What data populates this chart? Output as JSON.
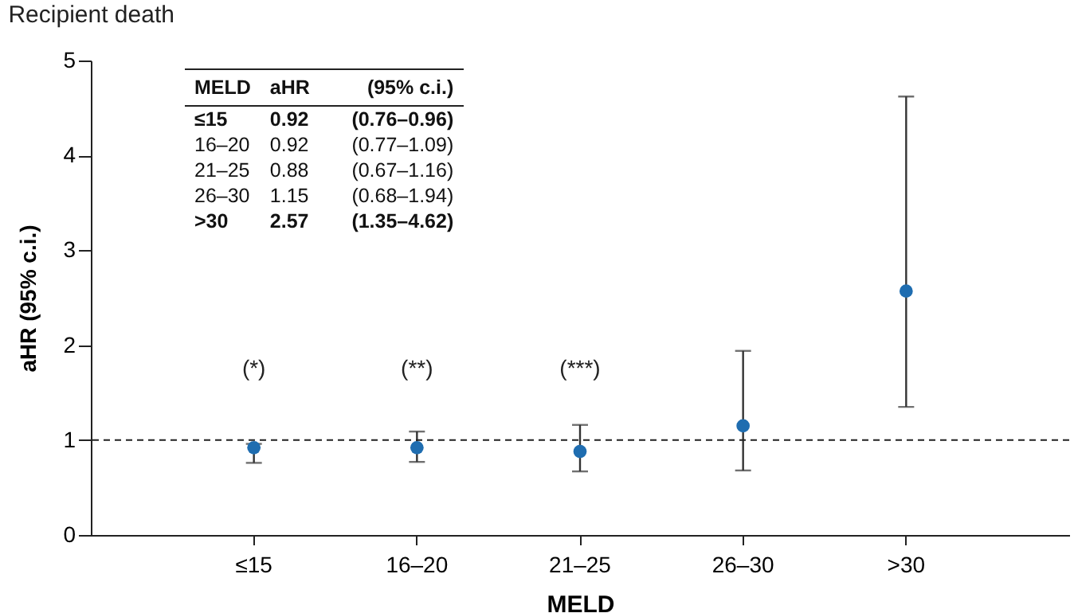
{
  "chart_data": {
    "type": "scatter",
    "title": "Recipient death",
    "xlabel": "MELD",
    "ylabel": "aHR (95% c.i.)",
    "categories": [
      "≤15",
      "16–20",
      "21–25",
      "26–30",
      ">30"
    ],
    "values": [
      0.92,
      0.92,
      0.88,
      1.15,
      2.57
    ],
    "errors": [
      [
        0.76,
        0.96
      ],
      [
        0.77,
        1.09
      ],
      [
        0.67,
        1.16
      ],
      [
        0.68,
        1.94
      ],
      [
        1.35,
        4.62
      ]
    ],
    "color": "#1f6db0",
    "marker": "circle",
    "ylim": [
      0,
      5
    ],
    "yticks": [
      0,
      1,
      2,
      3,
      4,
      5
    ],
    "grid": false,
    "ref_lines": [
      {
        "axis": "y",
        "value": 1,
        "line_style": "dashed"
      }
    ],
    "annotations": [
      "MELD",
      "aHR",
      "(95% c.i.)",
      "0.92",
      "(0.76–0.96)",
      "0.92",
      "(0.77–1.09)",
      "0.88",
      "(0.67–1.16)",
      "1.15",
      "(0.68–1.94)",
      "2.57",
      "(1.35–4.62)",
      "(*)",
      "(**)",
      "(***)"
    ]
  }
}
